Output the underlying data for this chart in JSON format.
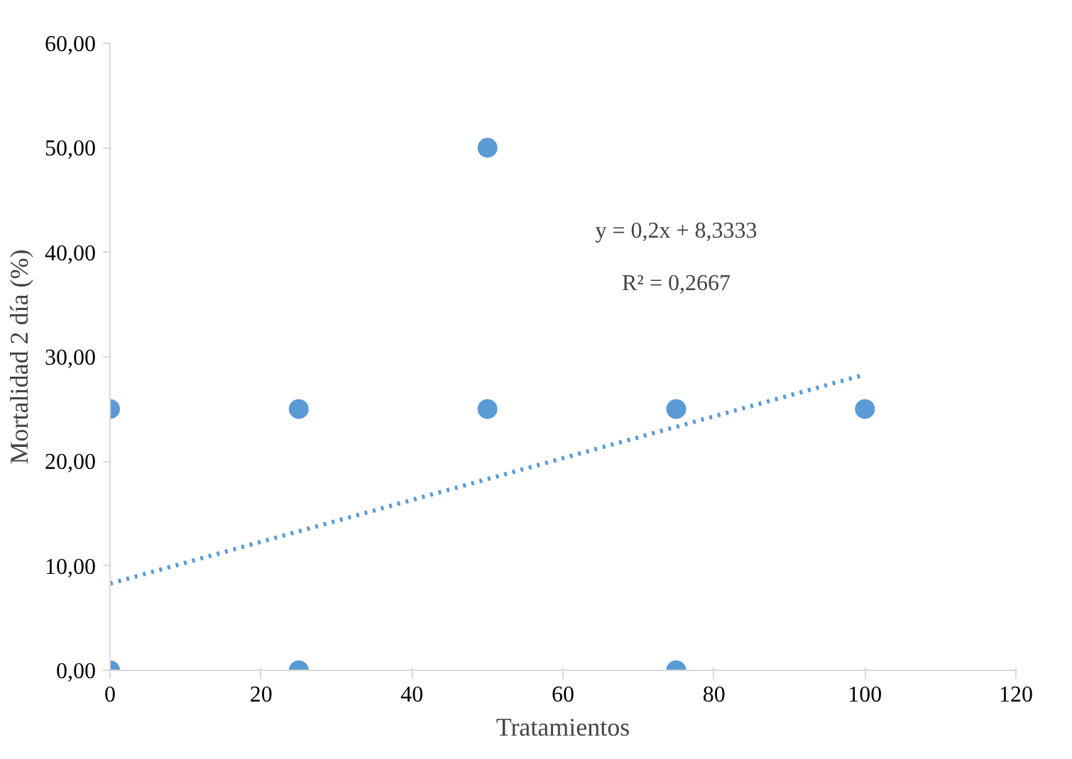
{
  "chart_data": {
    "type": "scatter",
    "xlabel": "Tratamientos",
    "ylabel": "Mortalidad 2 día (%)",
    "series": [
      {
        "color": "#5b9bd5",
        "x": [
          0,
          0,
          25,
          25,
          50,
          50,
          75,
          75,
          100
        ],
        "values": [
          25,
          0,
          25,
          0,
          50,
          25,
          25,
          0,
          25
        ],
        "marker": "circle"
      },
      {
        "type": "line",
        "color": "#5b9bd5",
        "x": [
          0,
          100
        ],
        "values": [
          8.3,
          28.3
        ],
        "line_style": "dotted"
      }
    ],
    "annotations": [
      "y = 0,2x + 8,3333",
      "R² = 0,2667"
    ],
    "xlim": [
      0,
      120
    ],
    "xticks": [
      0,
      20,
      40,
      60,
      80,
      100,
      120
    ],
    "ylim": [
      0,
      60
    ],
    "yticks": [
      {
        "value": 0,
        "label": "0,00"
      },
      {
        "value": 10,
        "label": "10,00"
      },
      {
        "value": 20,
        "label": "20,00"
      },
      {
        "value": 30,
        "label": "30,00"
      },
      {
        "value": 40,
        "label": "40,00"
      },
      {
        "value": 50,
        "label": "50,00"
      },
      {
        "value": 60,
        "label": "60,00"
      }
    ],
    "grid": false
  }
}
